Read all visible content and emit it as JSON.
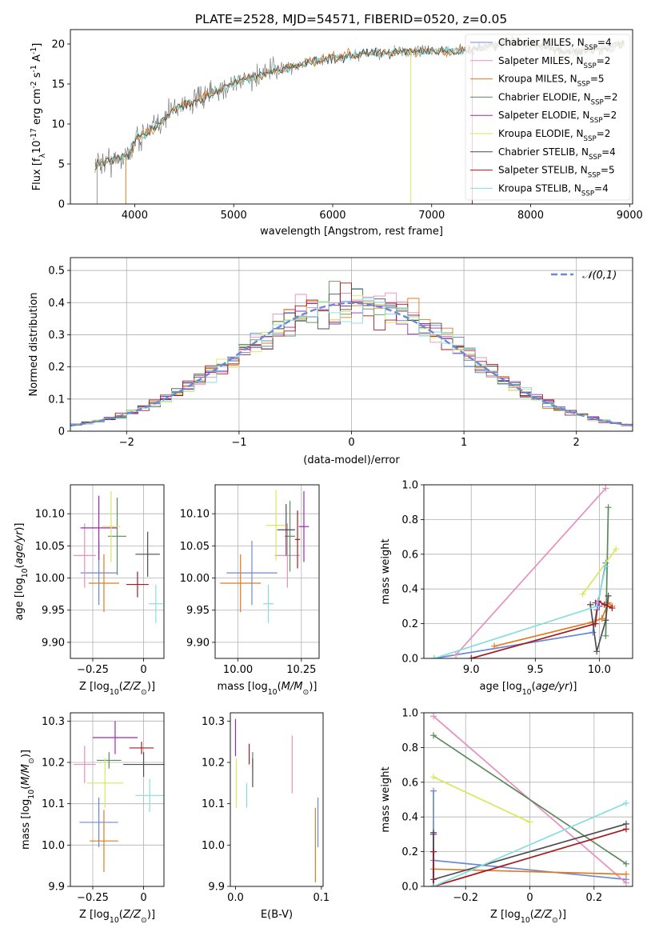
{
  "colors": {
    "series": [
      "#6a88d9",
      "#e88fbf",
      "#e07a1f",
      "#5b8a5b",
      "#9a2ab5",
      "#d8e85a",
      "#4d4d4d",
      "#a8181c",
      "#86dede"
    ],
    "normal_curve": "#6a88d9",
    "grid": "#b0b0b0"
  },
  "legend_labels": [
    "Chabrier MILES, N$_{SSP}$=4",
    "Salpeter MILES, N$_{SSP}$=2",
    "Kroupa MILES, N$_{SSP}$=5",
    "Chabrier ELODIE, N$_{SSP}$=2",
    "Salpeter ELODIE, N$_{SSP}$=2",
    "Kroupa ELODIE, N$_{SSP}$=2",
    "Chabrier STELIB, N$_{SSP}$=4",
    "Salpeter STELIB, N$_{SSP}$=5",
    "Kroupa STELIB, N$_{SSP}$=4"
  ],
  "chart_data": [
    {
      "type": "line",
      "title": "PLATE=2528, MJD=54571, FIBERID=0520, z=0.05",
      "xlabel": "wavelength [Angstrom, rest frame]",
      "ylabel": "Flux [f$_\\lambda$10$^{-17}$ erg cm$^{-2}$ s$^{-1}$ A$^{-1}$]",
      "xlim": [
        3350,
        9030
      ],
      "ylim": [
        0,
        21.8
      ],
      "xticks": [
        4000,
        5000,
        6000,
        7000,
        8000,
        9000
      ],
      "yticks": [
        0,
        5,
        10,
        15,
        20
      ],
      "grid": false,
      "legend_position": "right",
      "continuum_points": [
        [
          3600,
          5.0
        ],
        [
          3800,
          5.6
        ],
        [
          3950,
          6.2
        ],
        [
          4000,
          8.0
        ],
        [
          4200,
          9.5
        ],
        [
          4400,
          12.0
        ],
        [
          4600,
          12.8
        ],
        [
          4800,
          13.8
        ],
        [
          5000,
          15.2
        ],
        [
          5200,
          15.8
        ],
        [
          5400,
          16.6
        ],
        [
          5600,
          17.2
        ],
        [
          5800,
          17.8
        ],
        [
          6000,
          18.2
        ],
        [
          6200,
          18.6
        ],
        [
          6500,
          18.9
        ],
        [
          6800,
          19.0
        ],
        [
          7000,
          19.2
        ],
        [
          7200,
          19.0
        ],
        [
          7400,
          19.3
        ],
        [
          7600,
          19.8
        ],
        [
          7800,
          20.3
        ],
        [
          8000,
          20.0
        ],
        [
          8200,
          19.6
        ],
        [
          8400,
          19.0
        ],
        [
          8600,
          19.2
        ],
        [
          8800,
          19.6
        ],
        [
          8950,
          20.0
        ]
      ],
      "annotations": "observed spectrum (grey) overplotted with model fits for each template"
    },
    {
      "type": "histogram",
      "xlabel": "(data-model)/error",
      "ylabel": "Normed distribution",
      "xlim": [
        -2.5,
        2.5
      ],
      "ylim": [
        0,
        0.54
      ],
      "xticks": [
        -2,
        -1,
        0,
        1,
        2
      ],
      "yticks": [
        0.0,
        0.1,
        0.2,
        0.3,
        0.4,
        0.5
      ],
      "grid": true,
      "legend": [
        {
          "name": "$\\mathcal{N}(0,1)$",
          "style": "dashed"
        }
      ],
      "legend_position": "top-right",
      "bin_width": 0.1
    },
    {
      "type": "errorbar",
      "xlabel": "Z [log$_{10}$($Z/Z_\\odot$)]",
      "ylabel": "age  [log$_{10}$($age/yr$)]",
      "xlim": [
        -0.36,
        0.1
      ],
      "ylim": [
        9.875,
        10.145
      ],
      "xticks": [
        -0.25,
        0.0
      ],
      "yticks": [
        9.9,
        9.95,
        10.0,
        10.05,
        10.1
      ],
      "grid": true,
      "points": [
        {
          "x": -0.22,
          "y": 10.008,
          "xerr": 0.09,
          "yerr": 0.05
        },
        {
          "x": -0.29,
          "y": 10.035,
          "xerr": 0.055,
          "yerr": 0.05
        },
        {
          "x": -0.195,
          "y": 9.992,
          "xerr": 0.075,
          "yerr": 0.045
        },
        {
          "x": -0.13,
          "y": 10.065,
          "xerr": 0.045,
          "yerr": 0.06
        },
        {
          "x": -0.22,
          "y": 10.078,
          "xerr": 0.09,
          "yerr": 0.05
        },
        {
          "x": -0.16,
          "y": 10.08,
          "xerr": 0.045,
          "yerr": 0.055
        },
        {
          "x": 0.02,
          "y": 10.037,
          "xerr": 0.06,
          "yerr": 0.035
        },
        {
          "x": -0.03,
          "y": 9.99,
          "xerr": 0.055,
          "yerr": 0.02
        },
        {
          "x": 0.06,
          "y": 9.96,
          "xerr": 0.035,
          "yerr": 0.03
        }
      ]
    },
    {
      "type": "errorbar",
      "xlabel": "mass [log$_{10}$($M/M_\\odot$)]",
      "ylabel": "",
      "xlim": [
        9.91,
        10.32
      ],
      "ylim": [
        9.875,
        10.145
      ],
      "xticks": [
        10.0,
        10.25
      ],
      "yticks": [
        9.9,
        9.95,
        10.0,
        10.05,
        10.1
      ],
      "grid": true,
      "points": [
        {
          "x": 10.055,
          "y": 10.008,
          "xerr": 0.1,
          "yerr": 0.05
        },
        {
          "x": 10.195,
          "y": 10.035,
          "xerr": 0.05,
          "yerr": 0.05
        },
        {
          "x": 10.01,
          "y": 9.992,
          "xerr": 0.08,
          "yerr": 0.045
        },
        {
          "x": 10.205,
          "y": 10.065,
          "xerr": 0.02,
          "yerr": 0.055
        },
        {
          "x": 10.26,
          "y": 10.08,
          "xerr": 0.02,
          "yerr": 0.055
        },
        {
          "x": 10.15,
          "y": 10.082,
          "xerr": 0.04,
          "yerr": 0.055
        },
        {
          "x": 10.19,
          "y": 10.075,
          "xerr": 0.035,
          "yerr": 0.04
        },
        {
          "x": 10.235,
          "y": 10.06,
          "xerr": 0.01,
          "yerr": 0.045
        },
        {
          "x": 10.12,
          "y": 9.96,
          "xerr": 0.02,
          "yerr": 0.03
        }
      ]
    },
    {
      "type": "line",
      "xlabel": "age  [log$_{10}$($age/yr$)]",
      "ylabel": "mass weight",
      "xlim": [
        8.63,
        10.26
      ],
      "ylim": [
        0,
        1.0
      ],
      "xticks": [
        9.0,
        9.5,
        10.0
      ],
      "yticks": [
        0.0,
        0.2,
        0.4,
        0.6,
        0.8,
        1.0
      ],
      "grid": true,
      "series": [
        {
          "points": [
            [
              8.71,
              0.0
            ],
            [
              9.95,
              0.15
            ],
            [
              9.98,
              0.28
            ],
            [
              10.05,
              0.55
            ]
          ]
        },
        {
          "points": [
            [
              8.88,
              0.02
            ],
            [
              10.05,
              0.98
            ]
          ]
        },
        {
          "points": [
            [
              9.18,
              0.07
            ],
            [
              9.95,
              0.21
            ],
            [
              10.02,
              0.23
            ],
            [
              10.07,
              0.32
            ],
            [
              10.1,
              0.3
            ]
          ]
        },
        {
          "points": [
            [
              10.05,
              0.13
            ],
            [
              10.07,
              0.87
            ]
          ]
        },
        {
          "points": [
            [
              9.97,
              0.32
            ],
            [
              10.0,
              0.3
            ]
          ]
        },
        {
          "points": [
            [
              9.87,
              0.37
            ],
            [
              10.13,
              0.63
            ]
          ]
        },
        {
          "points": [
            [
              9.93,
              0.31
            ],
            [
              9.98,
              0.04
            ],
            [
              10.05,
              0.22
            ],
            [
              10.07,
              0.36
            ]
          ]
        },
        {
          "points": [
            [
              9.0,
              0.0
            ],
            [
              9.97,
              0.2
            ],
            [
              9.99,
              0.33
            ],
            [
              10.04,
              0.31
            ],
            [
              10.1,
              0.29
            ]
          ]
        },
        {
          "points": [
            [
              8.71,
              0.0
            ],
            [
              9.98,
              0.3
            ],
            [
              10.05,
              0.53
            ]
          ]
        }
      ]
    },
    {
      "type": "errorbar",
      "xlabel": "Z [log$_{10}$($Z/Z_\\odot$)]",
      "ylabel": "mass [log$_{10}$($M/M_\\odot$)]",
      "xlim": [
        -0.36,
        0.1
      ],
      "ylim": [
        9.9,
        10.32
      ],
      "xticks": [
        -0.25,
        0.0
      ],
      "yticks": [
        9.9,
        10.0,
        10.1,
        10.2,
        10.3
      ],
      "grid": true,
      "points": [
        {
          "x": -0.22,
          "y": 10.055,
          "xerr": 0.095,
          "yerr": 0.06
        },
        {
          "x": -0.29,
          "y": 10.195,
          "xerr": 0.055,
          "yerr": 0.045
        },
        {
          "x": -0.195,
          "y": 10.01,
          "xerr": 0.07,
          "yerr": 0.075
        },
        {
          "x": -0.17,
          "y": 10.205,
          "xerr": 0.06,
          "yerr": 0.02
        },
        {
          "x": -0.14,
          "y": 10.26,
          "xerr": 0.11,
          "yerr": 0.04
        },
        {
          "x": -0.19,
          "y": 10.15,
          "xerr": 0.09,
          "yerr": 0.06
        },
        {
          "x": 0.0,
          "y": 10.195,
          "xerr": 0.1,
          "yerr": 0.03
        },
        {
          "x": -0.01,
          "y": 10.235,
          "xerr": 0.06,
          "yerr": 0.015
        },
        {
          "x": 0.03,
          "y": 10.12,
          "xerr": 0.07,
          "yerr": 0.04
        }
      ]
    },
    {
      "type": "errorbar",
      "xlabel": "E(B-V)",
      "ylabel": "",
      "xlim": [
        -0.006,
        0.102
      ],
      "ylim": [
        9.9,
        10.32
      ],
      "xticks": [
        0.0,
        0.1
      ],
      "yticks": [
        9.9,
        10.0,
        10.1,
        10.2,
        10.3
      ],
      "grid": false,
      "points": [
        {
          "x": 0.096,
          "y": 10.055,
          "yerr": 0.06
        },
        {
          "x": 0.066,
          "y": 10.195,
          "yerr": 0.07
        },
        {
          "x": 0.093,
          "y": 10.0,
          "yerr": 0.09
        },
        {
          "x": 0.02,
          "y": 10.205,
          "yerr": 0.02
        },
        {
          "x": 0.0,
          "y": 10.26,
          "yerr": 0.045
        },
        {
          "x": 0.001,
          "y": 10.15,
          "yerr": 0.06
        },
        {
          "x": 0.02,
          "y": 10.175,
          "yerr": 0.035
        },
        {
          "x": 0.016,
          "y": 10.22,
          "yerr": 0.025
        },
        {
          "x": 0.013,
          "y": 10.12,
          "yerr": 0.03
        }
      ]
    },
    {
      "type": "line",
      "xlabel": "Z [log$_{10}$($Z/Z_\\odot$)]",
      "ylabel": "mass weight",
      "xlim": [
        -0.33,
        0.32
      ],
      "ylim": [
        0,
        1.0
      ],
      "xticks": [
        -0.2,
        0.0,
        0.2
      ],
      "yticks": [
        0.0,
        0.2,
        0.4,
        0.6,
        0.8,
        1.0
      ],
      "grid": true,
      "series": [
        {
          "points": [
            [
              -0.3,
              0.55
            ],
            [
              -0.3,
              0.15
            ],
            [
              0.3,
              0.04
            ]
          ]
        },
        {
          "points": [
            [
              -0.3,
              0.98
            ],
            [
              0.3,
              0.02
            ]
          ]
        },
        {
          "points": [
            [
              -0.3,
              0.1
            ],
            [
              0.3,
              0.07
            ]
          ]
        },
        {
          "points": [
            [
              -0.3,
              0.87
            ],
            [
              0.3,
              0.13
            ]
          ]
        },
        {
          "points": [
            [
              -0.3,
              0.3
            ],
            [
              -0.3,
              0.0
            ]
          ]
        },
        {
          "points": [
            [
              -0.3,
              0.63
            ],
            [
              0.0,
              0.37
            ]
          ]
        },
        {
          "points": [
            [
              -0.3,
              0.31
            ],
            [
              -0.3,
              0.04
            ],
            [
              0.3,
              0.36
            ]
          ]
        },
        {
          "points": [
            [
              -0.3,
              0.2
            ],
            [
              -0.3,
              0.0
            ],
            [
              0.3,
              0.33
            ]
          ]
        },
        {
          "points": [
            [
              -0.3,
              0.0
            ],
            [
              0.3,
              0.48
            ]
          ]
        }
      ]
    }
  ]
}
